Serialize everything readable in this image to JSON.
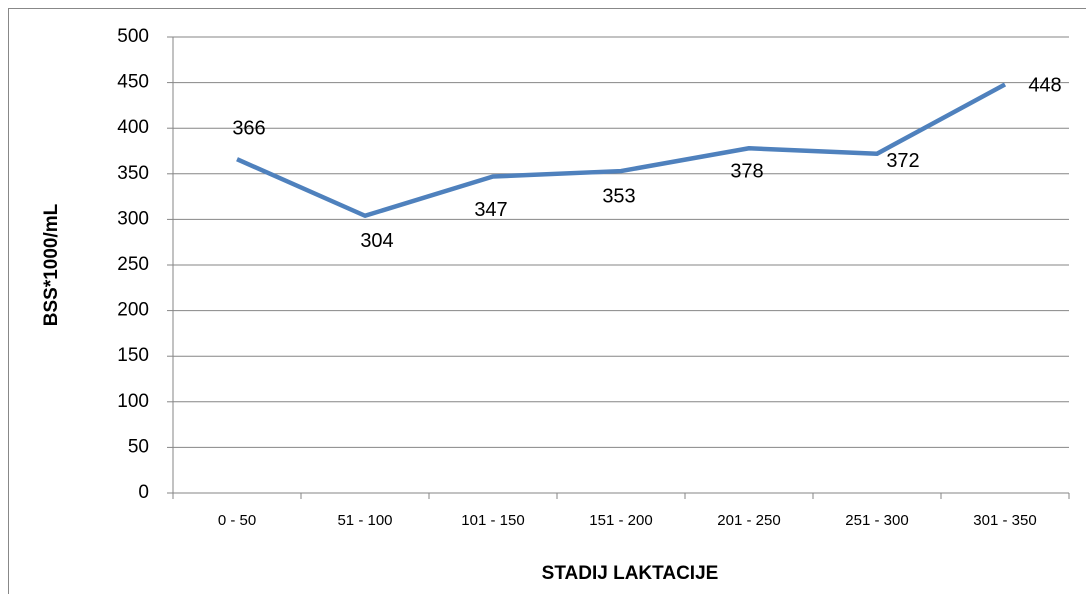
{
  "chart_data": {
    "type": "line",
    "x_label": "STADIJ LAKTACIJE",
    "y_label": "BSS*1000/mL",
    "categories": [
      "0 - 50",
      "51 - 100",
      "101 - 150",
      "151 - 200",
      "201 - 250",
      "251 - 300",
      "301 - 350"
    ],
    "values": [
      366,
      304,
      347,
      353,
      378,
      372,
      448
    ],
    "color": "#4f81bd",
    "ylim": [
      0,
      500
    ],
    "yticks": [
      0,
      50,
      100,
      150,
      200,
      250,
      300,
      350,
      400,
      450,
      500
    ],
    "grid": true
  }
}
